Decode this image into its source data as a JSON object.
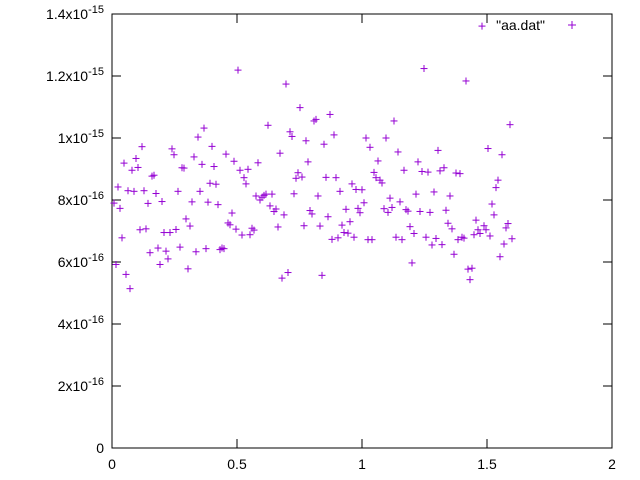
{
  "chart_data": {
    "type": "scatter",
    "title": "",
    "xlabel": "",
    "ylabel": "",
    "xlim": [
      0,
      2
    ],
    "ylim": [
      0,
      1.4e-15
    ],
    "grid": false,
    "legend_position": "top-right",
    "x_ticks": [
      {
        "value": 0,
        "label": "0"
      },
      {
        "value": 0.5,
        "label": "0.5"
      },
      {
        "value": 1,
        "label": "1"
      },
      {
        "value": 1.5,
        "label": "1.5"
      },
      {
        "value": 2,
        "label": "2"
      }
    ],
    "y_ticks": [
      {
        "value": 0,
        "mantissa": "0",
        "exponent": ""
      },
      {
        "value": 2e-16,
        "mantissa": "2x10",
        "exponent": "-16"
      },
      {
        "value": 4e-16,
        "mantissa": "4x10",
        "exponent": "-16"
      },
      {
        "value": 6e-16,
        "mantissa": "6x10",
        "exponent": "-16"
      },
      {
        "value": 8e-16,
        "mantissa": "8x10",
        "exponent": "-16"
      },
      {
        "value": 1e-15,
        "mantissa": "1x10",
        "exponent": "-15"
      },
      {
        "value": 1.2e-15,
        "mantissa": "1.2x10",
        "exponent": "-15"
      },
      {
        "value": 1.4e-15,
        "mantissa": "1.4x10",
        "exponent": "-15"
      }
    ],
    "series": [
      {
        "name": "\"aa.dat\"",
        "color": "#9400d3",
        "marker": "plus",
        "points": [
          [
            0.008,
            7.9e-16
          ],
          [
            0.016,
            5.92e-16
          ],
          [
            0.024,
            8.42e-16
          ],
          [
            0.032,
            7.73e-16
          ],
          [
            0.04,
            6.78e-16
          ],
          [
            0.048,
            9.19e-16
          ],
          [
            0.056,
            5.6e-16
          ],
          [
            0.064,
            8.3e-16
          ],
          [
            0.072,
            5.14e-16
          ],
          [
            0.08,
            8.96e-16
          ],
          [
            0.088,
            8.28e-16
          ],
          [
            0.096,
            9.34e-16
          ],
          [
            0.104,
            9.05e-16
          ],
          [
            0.112,
            7.04e-16
          ],
          [
            0.12,
            9.72e-16
          ],
          [
            0.128,
            8.3e-16
          ],
          [
            0.136,
            7.07e-16
          ],
          [
            0.144,
            7.89e-16
          ],
          [
            0.152,
            6.3e-16
          ],
          [
            0.16,
            8.77e-16
          ],
          [
            0.168,
            8.8e-16
          ],
          [
            0.176,
            8.21e-16
          ],
          [
            0.184,
            6.45e-16
          ],
          [
            0.192,
            5.92e-16
          ],
          [
            0.2,
            7.95e-16
          ],
          [
            0.208,
            6.95e-16
          ],
          [
            0.216,
            6.35e-16
          ],
          [
            0.224,
            6.1e-16
          ],
          [
            0.232,
            6.95e-16
          ],
          [
            0.24,
            9.65e-16
          ],
          [
            0.248,
            9.46e-16
          ],
          [
            0.256,
            7.05e-16
          ],
          [
            0.264,
            8.28e-16
          ],
          [
            0.272,
            6.48e-16
          ],
          [
            0.28,
            9.04e-16
          ],
          [
            0.288,
            9.03e-16
          ],
          [
            0.296,
            7.39e-16
          ],
          [
            0.304,
            5.78e-16
          ],
          [
            0.312,
            7.16e-16
          ],
          [
            0.32,
            7.94e-16
          ],
          [
            0.328,
            9.39e-16
          ],
          [
            0.336,
            6.33e-16
          ],
          [
            0.344,
            1.003e-15
          ],
          [
            0.352,
            8.28e-16
          ],
          [
            0.36,
            9.15e-16
          ],
          [
            0.368,
            1.032e-15
          ],
          [
            0.376,
            6.43e-16
          ],
          [
            0.384,
            7.93e-16
          ],
          [
            0.392,
            8.54e-16
          ],
          [
            0.4,
            9.73e-16
          ],
          [
            0.408,
            9.08e-16
          ],
          [
            0.416,
            8.51e-16
          ],
          [
            0.424,
            7.85e-16
          ],
          [
            0.432,
            6.4e-16
          ],
          [
            0.44,
            6.45e-16
          ],
          [
            0.448,
            6.43e-16
          ],
          [
            0.456,
            9.48e-16
          ],
          [
            0.464,
            7.26e-16
          ],
          [
            0.472,
            7.2e-16
          ],
          [
            0.48,
            7.58e-16
          ],
          [
            0.488,
            9.25e-16
          ],
          [
            0.496,
            7.06e-16
          ],
          [
            0.504,
            1.219e-15
          ],
          [
            0.512,
            8.96e-16
          ],
          [
            0.52,
            6.87e-16
          ],
          [
            0.528,
            8.72e-16
          ],
          [
            0.536,
            8.52e-16
          ],
          [
            0.544,
            8.99e-16
          ],
          [
            0.552,
            6.88e-16
          ],
          [
            0.56,
            7.09e-16
          ],
          [
            0.568,
            7.03e-16
          ],
          [
            0.576,
            8.13e-16
          ],
          [
            0.584,
            9.2e-16
          ],
          [
            0.592,
            8e-16
          ],
          [
            0.6,
            8.09e-16
          ],
          [
            0.608,
            8.15e-16
          ],
          [
            0.616,
            8.19e-16
          ],
          [
            0.624,
            1.041e-15
          ],
          [
            0.632,
            7.81e-16
          ],
          [
            0.64,
            8.19e-16
          ],
          [
            0.648,
            7.63e-16
          ],
          [
            0.656,
            7.71e-16
          ],
          [
            0.664,
            7.13e-16
          ],
          [
            0.672,
            9.51e-16
          ],
          [
            0.68,
            5.48e-16
          ],
          [
            0.688,
            7.52e-16
          ],
          [
            0.696,
            1.174e-15
          ],
          [
            0.704,
            5.66e-16
          ],
          [
            0.712,
            1.02e-15
          ],
          [
            0.72,
            1.005e-15
          ],
          [
            0.728,
            8.2e-16
          ],
          [
            0.736,
            8.7e-16
          ],
          [
            0.744,
            8.88e-16
          ],
          [
            0.752,
            1.098e-15
          ],
          [
            0.76,
            8.74e-16
          ],
          [
            0.768,
            7.17e-16
          ],
          [
            0.776,
            9.91e-16
          ],
          [
            0.784,
            9.23e-16
          ],
          [
            0.792,
            7.66e-16
          ],
          [
            0.8,
            7.55e-16
          ],
          [
            0.808,
            1.055e-15
          ],
          [
            0.816,
            1.06e-15
          ],
          [
            0.824,
            8.13e-16
          ],
          [
            0.832,
            7.16e-16
          ],
          [
            0.84,
            5.57e-16
          ],
          [
            0.848,
            9.8e-16
          ],
          [
            0.856,
            8.73e-16
          ],
          [
            0.864,
            7.46e-16
          ],
          [
            0.872,
            1.076e-15
          ],
          [
            0.88,
            6.73e-16
          ],
          [
            0.888,
            1.01e-15
          ],
          [
            0.896,
            8.72e-16
          ],
          [
            0.904,
            6.78e-16
          ],
          [
            0.912,
            8.28e-16
          ],
          [
            0.92,
            7.19e-16
          ],
          [
            0.928,
            6.95e-16
          ],
          [
            0.936,
            7.7e-16
          ],
          [
            0.944,
            6.93e-16
          ],
          [
            0.952,
            7.3e-16
          ],
          [
            0.96,
            8.52e-16
          ],
          [
            0.968,
            6.8e-16
          ],
          [
            0.976,
            8.34e-16
          ],
          [
            0.984,
            7.73e-16
          ],
          [
            0.992,
            7.59e-16
          ],
          [
            1.0,
            8.33e-16
          ],
          [
            1.008,
            7.91e-16
          ],
          [
            1.016,
            1e-15
          ],
          [
            1.024,
            6.72e-16
          ],
          [
            1.032,
            9.7e-16
          ],
          [
            1.04,
            6.72e-16
          ],
          [
            1.048,
            8.89e-16
          ],
          [
            1.056,
            8.72e-16
          ],
          [
            1.064,
            9.26e-16
          ],
          [
            1.072,
            8.64e-16
          ],
          [
            1.08,
            8.55e-16
          ],
          [
            1.088,
            7.72e-16
          ],
          [
            1.096,
            1e-15
          ],
          [
            1.104,
            7.6e-16
          ],
          [
            1.112,
            8.06e-16
          ],
          [
            1.12,
            7.76e-16
          ],
          [
            1.128,
            1.055e-15
          ],
          [
            1.136,
            6.8e-16
          ],
          [
            1.144,
            9.55e-16
          ],
          [
            1.152,
            7.94e-16
          ],
          [
            1.16,
            6.72e-16
          ],
          [
            1.168,
            8.96e-16
          ],
          [
            1.176,
            7.69e-16
          ],
          [
            1.184,
            7.64e-16
          ],
          [
            1.192,
            7.14e-16
          ],
          [
            1.2,
            5.97e-16
          ],
          [
            1.208,
            6.92e-16
          ],
          [
            1.216,
            8.19e-16
          ],
          [
            1.224,
            9.23e-16
          ],
          [
            1.232,
            7.63e-16
          ],
          [
            1.24,
            8.92e-16
          ],
          [
            1.248,
            1.224e-15
          ],
          [
            1.256,
            6.8e-16
          ],
          [
            1.264,
            8.9e-16
          ],
          [
            1.272,
            7.6e-16
          ],
          [
            1.28,
            6.55e-16
          ],
          [
            1.288,
            8.26e-16
          ],
          [
            1.296,
            6.76e-16
          ],
          [
            1.304,
            9.6e-16
          ],
          [
            1.312,
            8.94e-16
          ],
          [
            1.32,
            6.56e-16
          ],
          [
            1.328,
            9.04e-16
          ],
          [
            1.336,
            7.67e-16
          ],
          [
            1.344,
            7.25e-16
          ],
          [
            1.352,
            8.13e-16
          ],
          [
            1.36,
            7.07e-16
          ],
          [
            1.368,
            6.25e-16
          ],
          [
            1.376,
            8.87e-16
          ],
          [
            1.384,
            6.72e-16
          ],
          [
            1.392,
            8.85e-16
          ],
          [
            1.4,
            6.8e-16
          ],
          [
            1.408,
            6.77e-16
          ],
          [
            1.416,
            1.184e-15
          ],
          [
            1.424,
            5.77e-16
          ],
          [
            1.432,
            5.43e-16
          ],
          [
            1.44,
            5.8e-16
          ],
          [
            1.448,
            6.88e-16
          ],
          [
            1.456,
            7.35e-16
          ],
          [
            1.464,
            7.04e-16
          ],
          [
            1.472,
            6.92e-16
          ],
          [
            1.48,
            1.361e-15
          ],
          [
            1.488,
            7.17e-16
          ],
          [
            1.496,
            7.04e-16
          ],
          [
            1.504,
            9.66e-16
          ],
          [
            1.512,
            6.84e-16
          ],
          [
            1.52,
            7.87e-16
          ],
          [
            1.528,
            7.52e-16
          ],
          [
            1.536,
            8.4e-16
          ],
          [
            1.544,
            8.64e-16
          ],
          [
            1.552,
            6.17e-16
          ],
          [
            1.56,
            9.46e-16
          ],
          [
            1.568,
            6.58e-16
          ],
          [
            1.576,
            7.1e-16
          ],
          [
            1.584,
            7.24e-16
          ],
          [
            1.592,
            1.043e-15
          ],
          [
            1.6,
            6.75e-16
          ]
        ]
      }
    ]
  }
}
